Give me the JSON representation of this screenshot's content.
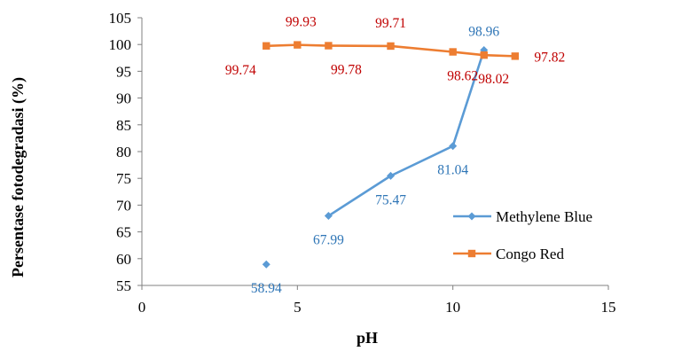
{
  "chart_data": {
    "type": "line",
    "title": "",
    "xlabel": "pH",
    "ylabel": "Persentase fotodegradasi (%)",
    "xlim": [
      0,
      15
    ],
    "ylim": [
      55,
      105
    ],
    "xticks": [
      0,
      5,
      10,
      15
    ],
    "yticks": [
      55,
      60,
      65,
      70,
      75,
      80,
      85,
      90,
      95,
      100,
      105
    ],
    "xtick_labels": [
      "0",
      "5",
      "10",
      "15"
    ],
    "ytick_labels": [
      "55",
      "60",
      "65",
      "70",
      "75",
      "80",
      "85",
      "90",
      "95",
      "100",
      "105"
    ],
    "grid": false,
    "legend_position": "right",
    "series": [
      {
        "name": "Methylene Blue",
        "color": "#5b9bd5",
        "label_color": "#2e75b6",
        "marker": "diamond",
        "x": [
          4,
          6,
          8,
          10,
          11
        ],
        "y": [
          58.94,
          67.99,
          75.47,
          81.04,
          98.96
        ],
        "labels": [
          "58.94",
          "67.99",
          "75.47",
          "81.04",
          "98.96"
        ],
        "line_from_index": 1
      },
      {
        "name": "Congo Red",
        "color": "#ed7d31",
        "label_color": "#c00000",
        "marker": "square",
        "x": [
          4,
          5,
          6,
          8,
          10,
          11,
          12
        ],
        "y": [
          99.74,
          99.93,
          99.78,
          99.71,
          98.62,
          98.02,
          97.82
        ],
        "labels": [
          "99.74",
          "99.93",
          "99.78",
          "99.71",
          "98.62",
          "98.02",
          "97.82"
        ],
        "line_from_index": 0
      }
    ]
  }
}
